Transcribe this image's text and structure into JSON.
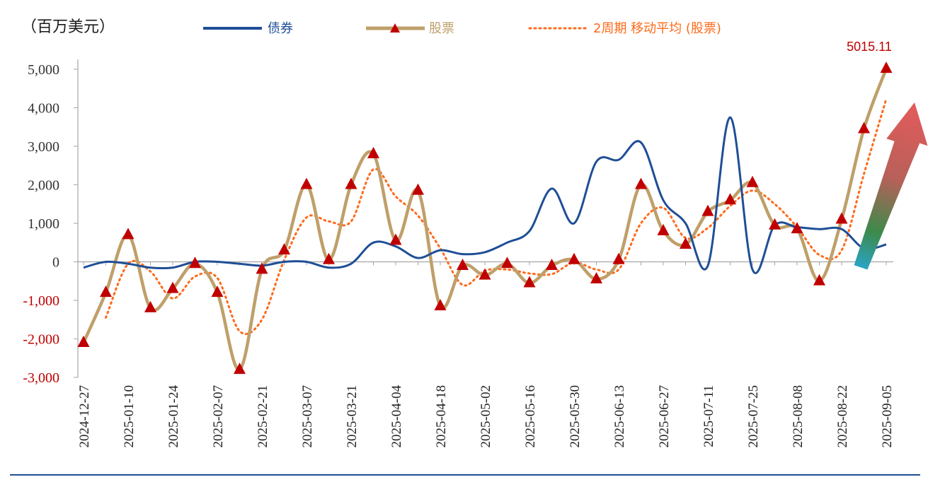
{
  "chart_data": {
    "type": "line",
    "unit_label": "（百万美元）",
    "ylim": [
      -3000,
      5000
    ],
    "y_ticks": [
      "5,000",
      "4,000",
      "3,000",
      "2,000",
      "1,000",
      "0",
      "-1,000",
      "-2,000",
      "-3,000"
    ],
    "y_tick_values": [
      5000,
      4000,
      3000,
      2000,
      1000,
      0,
      -1000,
      -2000,
      -3000
    ],
    "negative_tick_color": "#c00000",
    "x_tick_labels": [
      "2024-12-27",
      "2025-01-10",
      "2025-01-24",
      "2025-02-07",
      "2025-02-21",
      "2025-03-07",
      "2025-03-21",
      "2025-04-04",
      "2025-04-18",
      "2025-05-02",
      "2025-05-16",
      "2025-05-30",
      "2025-06-13",
      "2025-06-27",
      "2025-07-11",
      "2025-07-25",
      "2025-08-08",
      "2025-08-22",
      "2025-09-05"
    ],
    "x": [
      "2024-12-27",
      "2025-01-03",
      "2025-01-10",
      "2025-01-17",
      "2025-01-24",
      "2025-01-31",
      "2025-02-07",
      "2025-02-14",
      "2025-02-21",
      "2025-02-28",
      "2025-03-07",
      "2025-03-14",
      "2025-03-21",
      "2025-03-28",
      "2025-04-04",
      "2025-04-11",
      "2025-04-18",
      "2025-04-25",
      "2025-05-02",
      "2025-05-09",
      "2025-05-16",
      "2025-05-23",
      "2025-05-30",
      "2025-06-06",
      "2025-06-13",
      "2025-06-20",
      "2025-06-27",
      "2025-07-04",
      "2025-07-11",
      "2025-07-18",
      "2025-07-25",
      "2025-08-01",
      "2025-08-08",
      "2025-08-15",
      "2025-08-22",
      "2025-08-29",
      "2025-09-05"
    ],
    "series": [
      {
        "name": "债券",
        "color": "#1f4e96",
        "style": "solid",
        "values": [
          -150,
          0,
          -50,
          -150,
          -150,
          0,
          0,
          -50,
          -100,
          0,
          0,
          -150,
          -50,
          500,
          400,
          100,
          300,
          200,
          250,
          500,
          800,
          1900,
          1000,
          2600,
          2650,
          3100,
          1600,
          1000,
          -100,
          3750,
          -200,
          950,
          900,
          850,
          850,
          350,
          450
        ]
      },
      {
        "name": "股票",
        "color": "#bf9f6a",
        "style": "solid",
        "marker": "triangle",
        "marker_color": "#c00000",
        "values": [
          -2100,
          -800,
          700,
          -1200,
          -700,
          -50,
          -800,
          -2800,
          -200,
          300,
          2000,
          50,
          2000,
          2800,
          550,
          1850,
          -1150,
          -100,
          -350,
          -50,
          -550,
          -100,
          50,
          -450,
          50,
          2000,
          800,
          450,
          1300,
          1600,
          2050,
          950,
          850,
          -500,
          1100,
          3450,
          5015
        ]
      },
      {
        "name": "2周期 移动平均 (股票)",
        "color": "#ff6a1a",
        "style": "dotted",
        "values": [
          null,
          -1450,
          -50,
          -250,
          -950,
          -380,
          -420,
          -1800,
          -1500,
          50,
          1150,
          1050,
          1050,
          2400,
          1700,
          1200,
          350,
          -600,
          -230,
          -200,
          -300,
          -320,
          -20,
          -200,
          -200,
          1000,
          1400,
          620,
          880,
          1450,
          1850,
          1500,
          900,
          180,
          300,
          2280,
          4230
        ]
      }
    ],
    "annotations": [
      {
        "text": "5015.11",
        "series": "股票",
        "x": "2025-09-05",
        "y": 5015.11
      }
    ],
    "grid": false,
    "legend_position": "top"
  }
}
